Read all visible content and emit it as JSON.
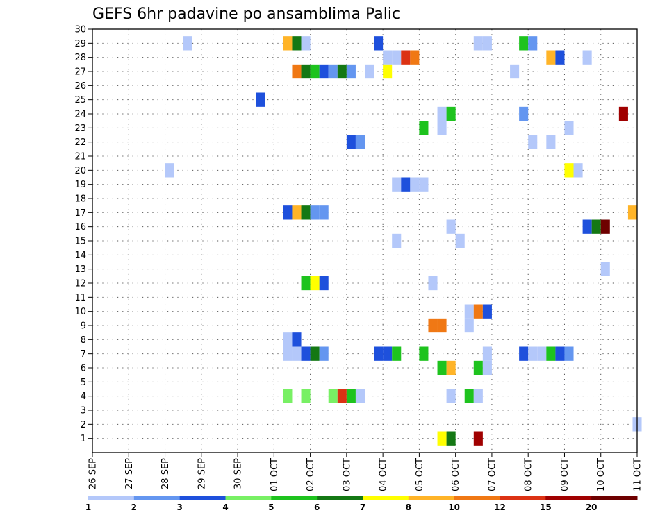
{
  "chart_data": {
    "type": "heatmap",
    "title": "GEFS 6hr padavine po ansamblima Palic",
    "x_tick_labels": [
      "26 SEP",
      "27 SEP",
      "28 SEP",
      "29 SEP",
      "30 SEP",
      "01 OCT",
      "02 OCT",
      "03 OCT",
      "04 OCT",
      "05 OCT",
      "06 OCT",
      "07 OCT",
      "08 OCT",
      "09 OCT",
      "10 OCT",
      "11 OCT"
    ],
    "y_tick_labels": [
      "1",
      "2",
      "3",
      "4",
      "5",
      "6",
      "7",
      "8",
      "9",
      "10",
      "11",
      "12",
      "13",
      "14",
      "15",
      "16",
      "17",
      "18",
      "19",
      "20",
      "21",
      "22",
      "23",
      "24",
      "25",
      "26",
      "27",
      "28",
      "29",
      "30"
    ],
    "x_range_steps": [
      0,
      60
    ],
    "y_range": [
      0,
      30
    ],
    "grid": "dotted",
    "legend_placement": "bottom",
    "colorbar": {
      "labels": [
        "1",
        "2",
        "3",
        "4",
        "5",
        "6",
        "7",
        "8",
        "10",
        "12",
        "15",
        "20"
      ],
      "colors": [
        "#b4c8fa",
        "#6496f0",
        "#1e50dc",
        "#78f064",
        "#1ec31e",
        "#147814",
        "#ffff00",
        "#ffb428",
        "#f07814",
        "#dc3214",
        "#a00000",
        "#6e0000"
      ]
    },
    "cells": [
      [
        10.5,
        29,
        0
      ],
      [
        21.5,
        29,
        7
      ],
      [
        22.5,
        29,
        5
      ],
      [
        23.5,
        29,
        0
      ],
      [
        31.5,
        29,
        2
      ],
      [
        42.5,
        29,
        0
      ],
      [
        43.5,
        29,
        0
      ],
      [
        47.5,
        29,
        4
      ],
      [
        48.5,
        29,
        1
      ],
      [
        32.5,
        28,
        0
      ],
      [
        33.5,
        28,
        0
      ],
      [
        34.5,
        28,
        9
      ],
      [
        35.5,
        28,
        8
      ],
      [
        50.5,
        28,
        7
      ],
      [
        51.5,
        28,
        2
      ],
      [
        54.5,
        28,
        0
      ],
      [
        22.5,
        27,
        8
      ],
      [
        23.5,
        27,
        5
      ],
      [
        24.5,
        27,
        4
      ],
      [
        25.5,
        27,
        2
      ],
      [
        26.5,
        27,
        1
      ],
      [
        27.5,
        27,
        5
      ],
      [
        28.5,
        27,
        1
      ],
      [
        30.5,
        27,
        0
      ],
      [
        32.5,
        27,
        6
      ],
      [
        46.5,
        27,
        0
      ],
      [
        18.5,
        25,
        2
      ],
      [
        38.5,
        24,
        0
      ],
      [
        39.5,
        24,
        4
      ],
      [
        47.5,
        24,
        1
      ],
      [
        58.5,
        24,
        10
      ],
      [
        36.5,
        23,
        4
      ],
      [
        38.5,
        23,
        0
      ],
      [
        52.5,
        23,
        0
      ],
      [
        28.5,
        22,
        2
      ],
      [
        29.5,
        22,
        1
      ],
      [
        48.5,
        22,
        0
      ],
      [
        50.5,
        22,
        0
      ],
      [
        8.5,
        20,
        0
      ],
      [
        52.5,
        20,
        6
      ],
      [
        53.5,
        20,
        0
      ],
      [
        33.5,
        19,
        0
      ],
      [
        34.5,
        19,
        2
      ],
      [
        35.5,
        19,
        0
      ],
      [
        36.5,
        19,
        0
      ],
      [
        21.5,
        17,
        2
      ],
      [
        22.5,
        17,
        7
      ],
      [
        23.5,
        17,
        5
      ],
      [
        24.5,
        17,
        1
      ],
      [
        25.5,
        17,
        1
      ],
      [
        59.5,
        17,
        7
      ],
      [
        39.5,
        16,
        0
      ],
      [
        54.5,
        16,
        2
      ],
      [
        55.5,
        16,
        5
      ],
      [
        56.5,
        16,
        11
      ],
      [
        33.5,
        15,
        0
      ],
      [
        40.5,
        15,
        0
      ],
      [
        56.5,
        13,
        0
      ],
      [
        23.5,
        12,
        4
      ],
      [
        24.5,
        12,
        6
      ],
      [
        25.5,
        12,
        2
      ],
      [
        37.5,
        12,
        0
      ],
      [
        41.5,
        10,
        0
      ],
      [
        42.5,
        10,
        8
      ],
      [
        43.5,
        10,
        2
      ],
      [
        37.5,
        9,
        8
      ],
      [
        38.5,
        9,
        8
      ],
      [
        41.5,
        9,
        0
      ],
      [
        21.5,
        8,
        0
      ],
      [
        22.5,
        8,
        2
      ],
      [
        21.5,
        7,
        0
      ],
      [
        22.5,
        7,
        0
      ],
      [
        23.5,
        7,
        2
      ],
      [
        24.5,
        7,
        5
      ],
      [
        25.5,
        7,
        1
      ],
      [
        31.5,
        7,
        2
      ],
      [
        32.5,
        7,
        2
      ],
      [
        33.5,
        7,
        4
      ],
      [
        36.5,
        7,
        4
      ],
      [
        43.5,
        7,
        0
      ],
      [
        47.5,
        7,
        2
      ],
      [
        48.5,
        7,
        0
      ],
      [
        49.5,
        7,
        0
      ],
      [
        50.5,
        7,
        4
      ],
      [
        51.5,
        7,
        2
      ],
      [
        52.5,
        7,
        1
      ],
      [
        38.5,
        6,
        4
      ],
      [
        39.5,
        6,
        7
      ],
      [
        42.5,
        6,
        4
      ],
      [
        43.5,
        6,
        0
      ],
      [
        21.5,
        4,
        3
      ],
      [
        23.5,
        4,
        3
      ],
      [
        26.5,
        4,
        3
      ],
      [
        27.5,
        4,
        9
      ],
      [
        28.5,
        4,
        4
      ],
      [
        29.5,
        4,
        0
      ],
      [
        39.5,
        4,
        0
      ],
      [
        41.5,
        4,
        4
      ],
      [
        42.5,
        4,
        0
      ],
      [
        60,
        2,
        0
      ],
      [
        38.5,
        1,
        6
      ],
      [
        39.5,
        1,
        5
      ],
      [
        42.5,
        1,
        10
      ]
    ]
  }
}
